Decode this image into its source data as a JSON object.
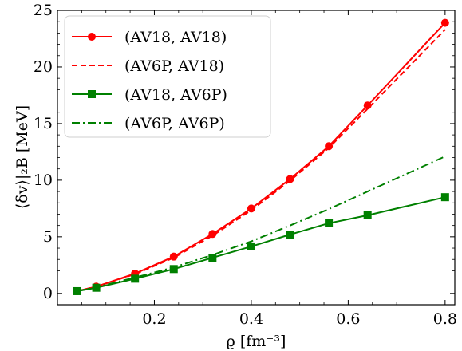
{
  "chart_data": {
    "type": "line",
    "title": "",
    "xlabel": "ϱ [fm⁻³]",
    "ylabel": "⟨δv⟩|₂B [MeV]",
    "xlim": [
      0.0,
      0.82
    ],
    "ylim": [
      -1,
      25
    ],
    "xticks": [
      0.2,
      0.4,
      0.6,
      0.8
    ],
    "xtick_labels": [
      "0.2",
      "0.4",
      "0.6",
      "0.8"
    ],
    "yticks": [
      0,
      5,
      10,
      15,
      20,
      25
    ],
    "ytick_labels": [
      "0",
      "5",
      "10",
      "15",
      "20",
      "25"
    ],
    "grid": false,
    "legend_position": "top-left",
    "series": [
      {
        "name": "(AV18, AV18)",
        "color": "#ff0000",
        "style": "solid",
        "marker": "circle",
        "x": [
          0.04,
          0.08,
          0.16,
          0.24,
          0.32,
          0.4,
          0.48,
          0.56,
          0.64,
          0.8
        ],
        "y": [
          0.2,
          0.6,
          1.75,
          3.25,
          5.25,
          7.5,
          10.1,
          13.0,
          16.6,
          23.9
        ]
      },
      {
        "name": "(AV6P, AV18)",
        "color": "#ff0000",
        "style": "dashed",
        "marker": "none",
        "x": [
          0.04,
          0.08,
          0.16,
          0.24,
          0.32,
          0.4,
          0.48,
          0.56,
          0.64,
          0.8
        ],
        "y": [
          0.2,
          0.6,
          1.7,
          3.15,
          5.1,
          7.35,
          9.95,
          12.85,
          16.3,
          23.3
        ]
      },
      {
        "name": "(AV18, AV6P)",
        "color": "#008000",
        "style": "solid",
        "marker": "square",
        "x": [
          0.04,
          0.08,
          0.16,
          0.24,
          0.32,
          0.4,
          0.48,
          0.56,
          0.64,
          0.8
        ],
        "y": [
          0.2,
          0.5,
          1.3,
          2.15,
          3.15,
          4.15,
          5.2,
          6.2,
          6.9,
          8.5
        ]
      },
      {
        "name": "(AV6P, AV6P)",
        "color": "#008000",
        "style": "dashdot",
        "marker": "none",
        "x": [
          0.04,
          0.08,
          0.16,
          0.24,
          0.32,
          0.4,
          0.48,
          0.56,
          0.64,
          0.8
        ],
        "y": [
          0.2,
          0.55,
          1.4,
          2.3,
          3.4,
          4.6,
          6.0,
          7.45,
          9.0,
          12.1
        ]
      }
    ]
  }
}
